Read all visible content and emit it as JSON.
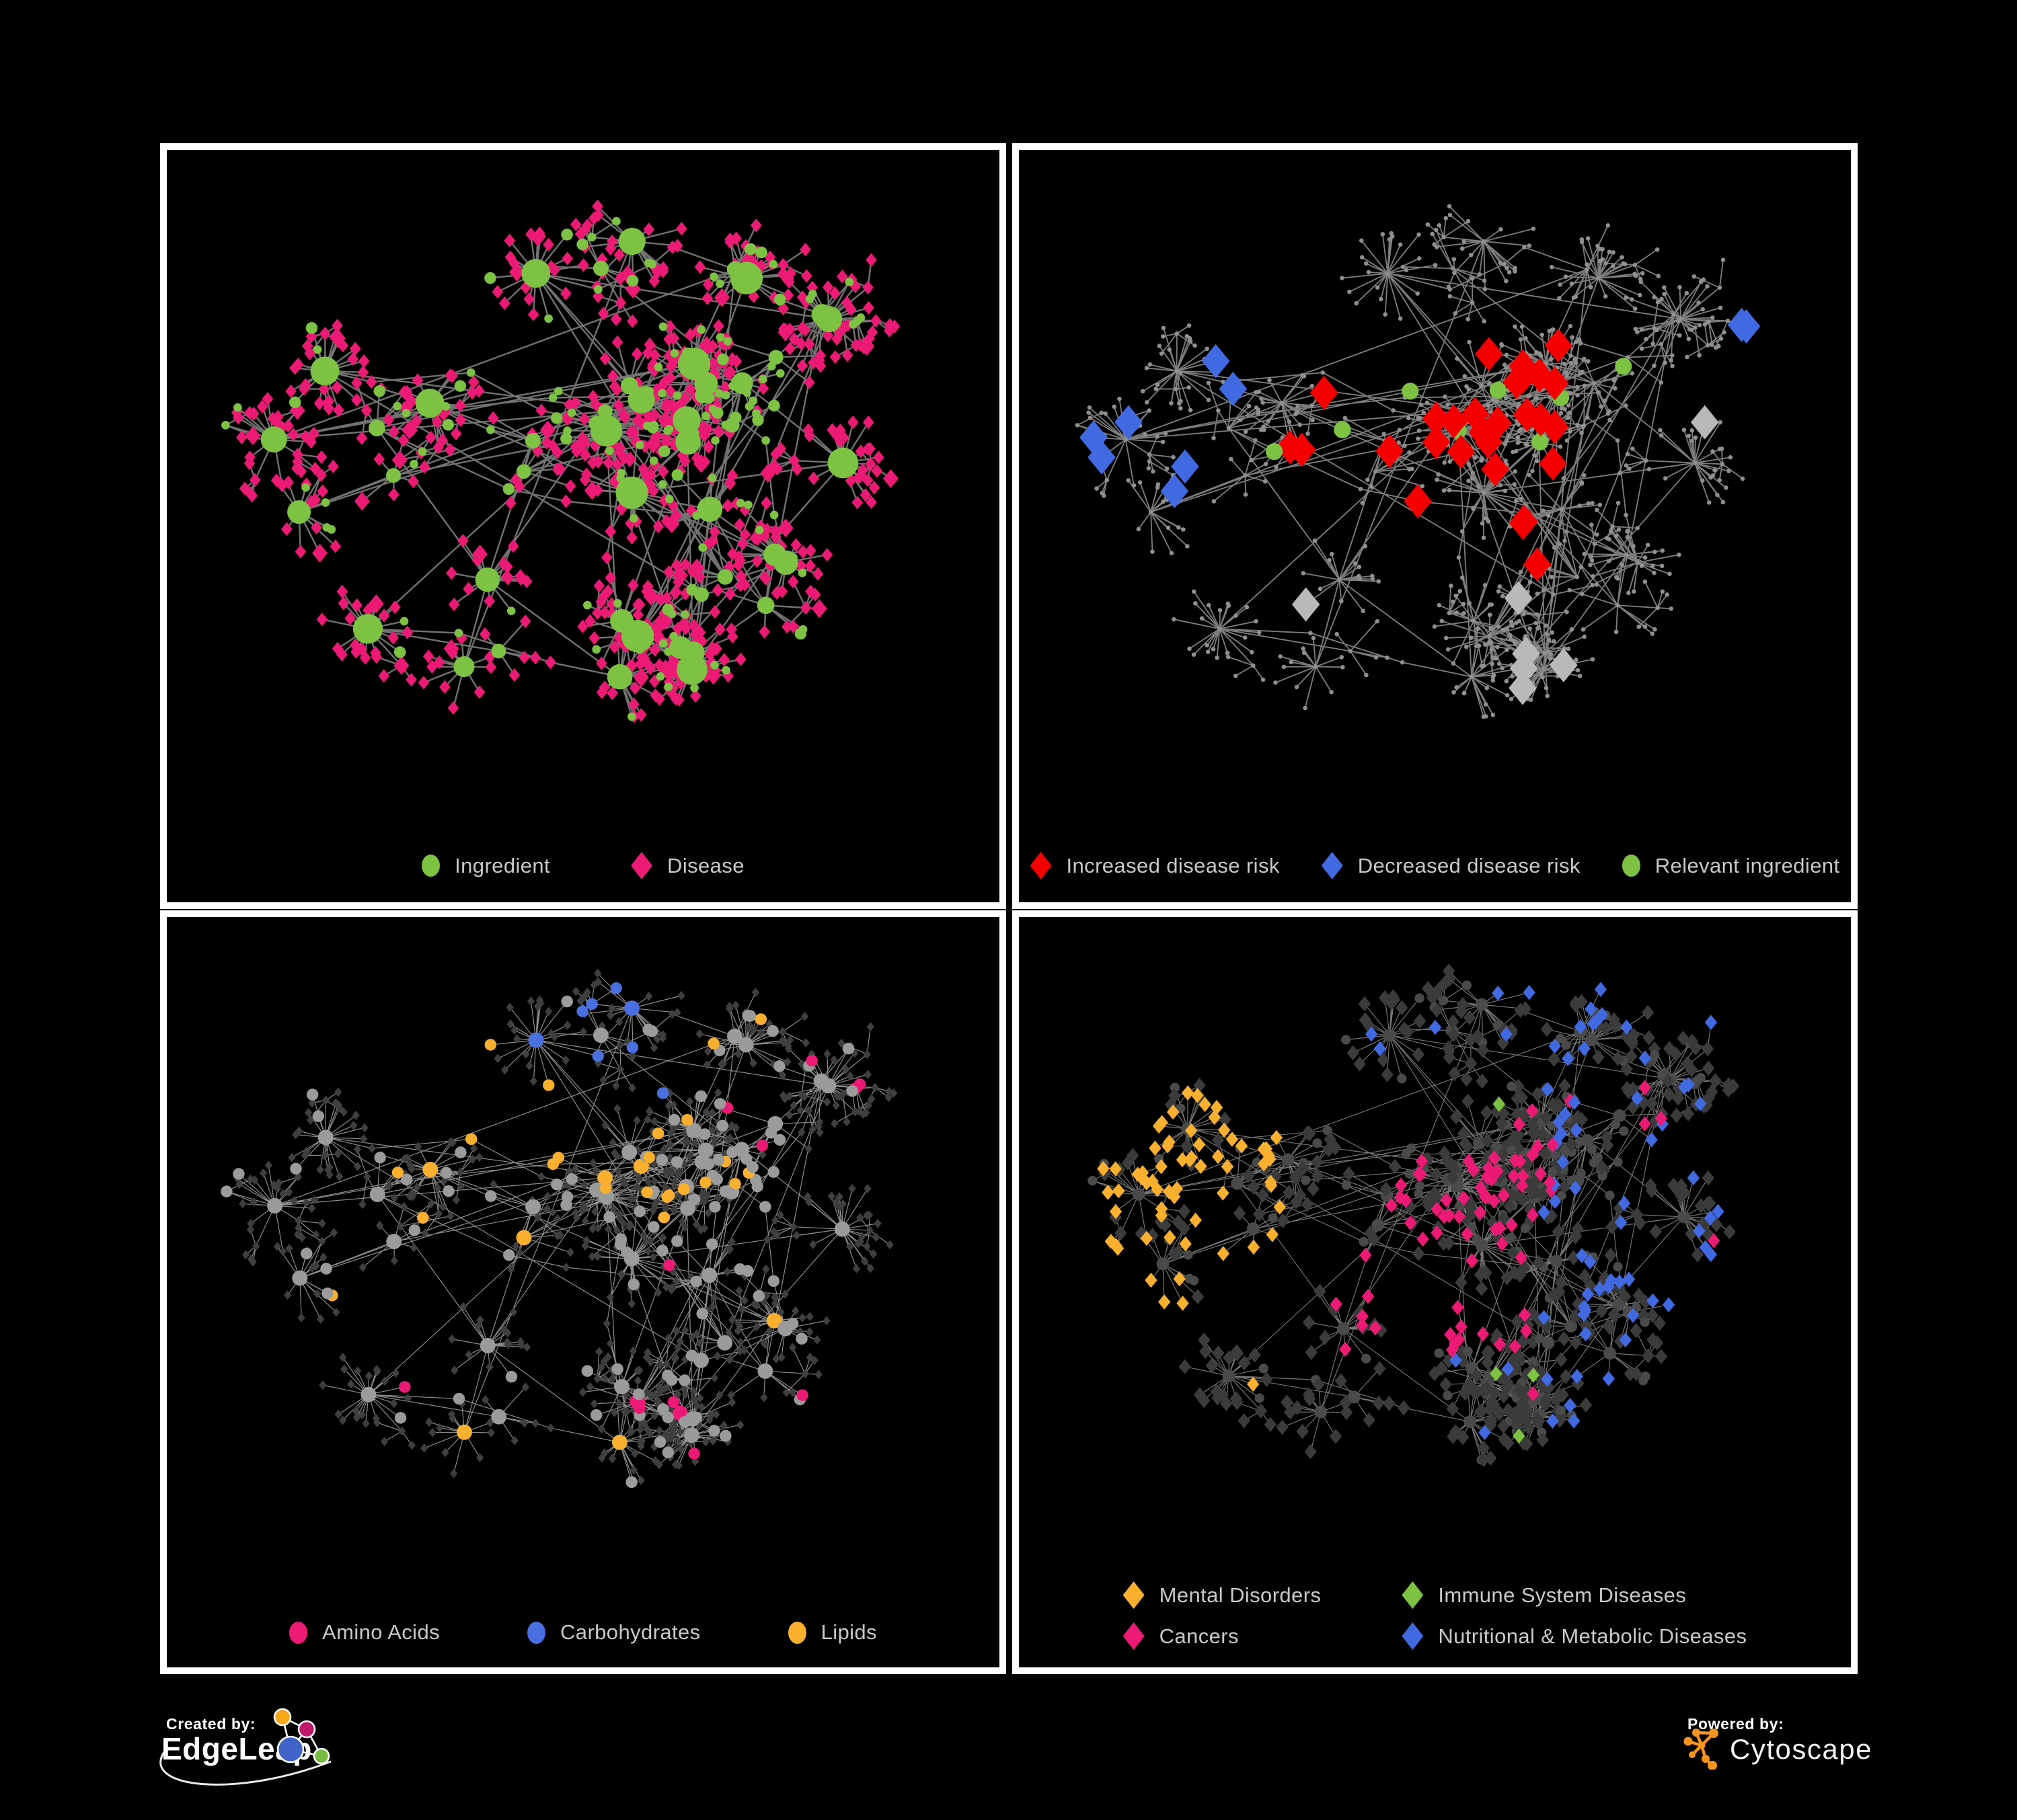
{
  "branding": {
    "created_by": "Created by:",
    "edgeleap_name": "EdgeLeap",
    "powered_by": "Powered by:",
    "cytoscape_name": "Cytoscape",
    "cytoscape_color": "#F7941E",
    "edgeleap_colors": {
      "yellow": "#F5A81C",
      "crimson": "#C2186B",
      "blue": "#4063C9",
      "green": "#77BD43"
    }
  },
  "panels": [
    {
      "name": "ingredient-disease-network",
      "legend": [
        {
          "label": "Ingredient",
          "shape": "circle",
          "color": "#7DC242"
        },
        {
          "label": "Disease",
          "shape": "diamond",
          "color": "#EC1A75"
        }
      ]
    },
    {
      "name": "disease-risk-network",
      "legend": [
        {
          "label": "Increased disease risk",
          "shape": "diamond",
          "color": "#F40000"
        },
        {
          "label": "Decreased disease risk",
          "shape": "diamond",
          "color": "#4169E1"
        },
        {
          "label": "Relevant ingredient",
          "shape": "circle",
          "color": "#7DC242"
        }
      ]
    },
    {
      "name": "ingredient-class-network",
      "legend": [
        {
          "label": "Amino Acids",
          "shape": "circle",
          "color": "#EC1A75"
        },
        {
          "label": "Carbohydrates",
          "shape": "circle",
          "color": "#4A6FE0"
        },
        {
          "label": "Lipids",
          "shape": "circle",
          "color": "#F9B02E"
        }
      ]
    },
    {
      "name": "disease-class-network",
      "legend": [
        {
          "label": "Mental Disorders",
          "shape": "diamond",
          "color": "#F9B02E"
        },
        {
          "label": "Immune System Diseases",
          "shape": "diamond",
          "color": "#7DC242"
        },
        {
          "label": "Cancers",
          "shape": "diamond",
          "color": "#EC1A75"
        },
        {
          "label": "Nutritional & Metabolic Diseases",
          "shape": "diamond",
          "color": "#4169E1"
        }
      ]
    }
  ],
  "network": {
    "seed": 20177,
    "hub_count": 46,
    "styles": {
      "p1": {
        "edge": "#787878",
        "edge_width": 2.2,
        "ingredient": "#7DC242",
        "disease": "#EC1A75"
      },
      "p2": {
        "edge": "#8a8a8a",
        "edge_width": 1.7,
        "dot": "#8f8f8f",
        "increased": "#F40000",
        "decreased": "#4169E1",
        "neutral": "#b9b9b9",
        "relevant": "#7DC242"
      },
      "p3": {
        "edge": "#a6a6a6",
        "edge_width": 1.1,
        "disease": "#3f3f3f",
        "ingredient": "#9b9b9b",
        "amino": "#EC1A75",
        "carb": "#4A6FE0",
        "lipid": "#F9B02E"
      },
      "p4": {
        "edge": "#8d8d8d",
        "edge_width": 1.1,
        "ingredient": "#4a4a4a",
        "disease": "#3b3b3b",
        "mental": "#F9B02E",
        "immune": "#7DC242",
        "cancer": "#EC1A75",
        "nutritional": "#4169E1"
      }
    }
  }
}
